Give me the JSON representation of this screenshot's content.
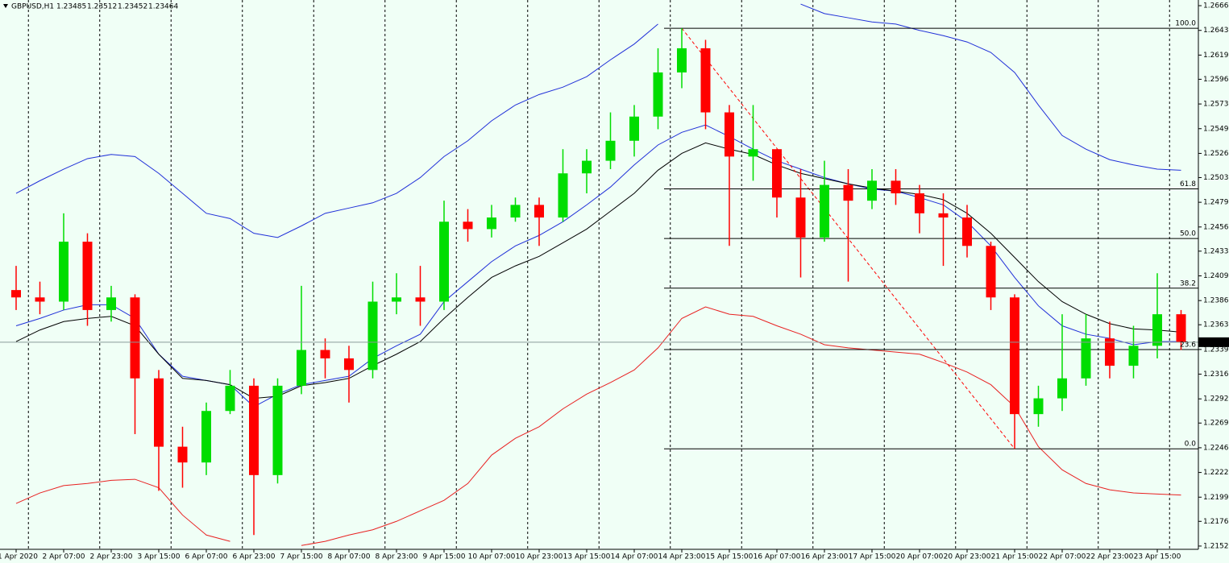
{
  "chart_data": {
    "type": "candlestick",
    "title": "GBPUSD,H1",
    "ohlc_header": [
      1.23485,
      1.23512,
      1.23452,
      1.23464
    ],
    "bid": 1.23464,
    "background": "#f0fff6",
    "up_color": "#00dd00",
    "down_color": "#ff0000",
    "categories": [
      "1 Apr 2020",
      null,
      "2 Apr 07:00",
      null,
      "2 Apr 23:00",
      null,
      "3 Apr 15:00",
      null,
      "6 Apr 07:00",
      null,
      "6 Apr 23:00",
      null,
      "7 Apr 15:00",
      null,
      "8 Apr 07:00",
      null,
      "8 Apr 23:00",
      null,
      "9 Apr 15:00",
      null,
      "10 Apr 07:00",
      null,
      "10 Apr 23:00",
      null,
      "13 Apr 15:00",
      null,
      "14 Apr 07:00",
      null,
      "14 Apr 23:00",
      null,
      "15 Apr 15:00",
      null,
      "16 Apr 07:00",
      null,
      "16 Apr 23:00",
      null,
      "17 Apr 15:00",
      null,
      "20 Apr 07:00",
      null,
      "20 Apr 23:00",
      null,
      "21 Apr 15:00",
      null,
      "22 Apr 07:00",
      null,
      "22 Apr 23:00",
      null,
      "23 Apr 15:00",
      null
    ],
    "candles": {
      "open": [
        1.2396,
        1.2389,
        1.2385,
        1.2442,
        1.2377,
        1.2389,
        1.2312,
        1.2247,
        1.2232,
        1.2281,
        1.2305,
        1.222,
        1.2305,
        1.2339,
        1.2331,
        1.232,
        1.2385,
        1.2389,
        1.2385,
        1.2461,
        1.2454,
        1.2465,
        1.2477,
        1.2465,
        1.2507,
        1.2519,
        1.2538,
        1.2561,
        1.2603,
        1.2626,
        1.2565,
        1.2523,
        1.253,
        1.2484,
        1.2446,
        1.2496,
        1.2481,
        1.25,
        1.2488,
        1.2469,
        1.2465,
        1.2438,
        1.2389,
        1.2278,
        1.2293,
        1.2312,
        1.235,
        1.2324,
        1.2343,
        1.2373
      ],
      "high": [
        1.2419,
        1.2404,
        1.2469,
        1.245,
        1.24,
        1.2392,
        1.232,
        1.2266,
        1.2289,
        1.232,
        1.2312,
        1.2312,
        1.24,
        1.235,
        1.2343,
        1.2404,
        1.2412,
        1.2419,
        1.2481,
        1.2473,
        1.2477,
        1.2484,
        1.2484,
        1.253,
        1.253,
        1.2565,
        1.2572,
        1.2626,
        1.2645,
        1.2634,
        1.2572,
        1.2572,
        1.253,
        1.2511,
        1.2519,
        1.2511,
        1.2511,
        1.2511,
        1.2496,
        1.2488,
        1.2477,
        1.2442,
        1.2392,
        1.2305,
        1.2373,
        1.2373,
        1.2366,
        1.2362,
        1.2412,
        1.2377
      ],
      "low": [
        1.2377,
        1.2373,
        1.2377,
        1.2362,
        1.2366,
        1.2259,
        1.2205,
        1.2208,
        1.222,
        1.2278,
        1.2163,
        1.2212,
        1.2297,
        1.2312,
        1.2289,
        1.2312,
        1.2373,
        1.2362,
        1.2377,
        1.2442,
        1.2446,
        1.2461,
        1.2438,
        1.2461,
        1.2488,
        1.2511,
        1.2523,
        1.2549,
        1.2588,
        1.2549,
        1.2438,
        1.25,
        1.2465,
        1.2408,
        1.2442,
        1.2404,
        1.2473,
        1.2477,
        1.245,
        1.2419,
        1.2427,
        1.2377,
        1.2245,
        1.2266,
        1.2281,
        1.2305,
        1.2312,
        1.2312,
        1.2331,
        1.2339
      ],
      "close": [
        1.2389,
        1.2385,
        1.2442,
        1.2377,
        1.2389,
        1.2312,
        1.2247,
        1.2232,
        1.2281,
        1.2305,
        1.222,
        1.2305,
        1.2339,
        1.2331,
        1.232,
        1.2385,
        1.2389,
        1.2385,
        1.2461,
        1.2454,
        1.2465,
        1.2477,
        1.2465,
        1.2507,
        1.2519,
        1.2538,
        1.2561,
        1.2603,
        1.2626,
        1.2565,
        1.2523,
        1.253,
        1.2484,
        1.2446,
        1.2496,
        1.2481,
        1.25,
        1.2488,
        1.2469,
        1.2465,
        1.2438,
        1.2389,
        1.2278,
        1.2293,
        1.2312,
        1.235,
        1.2324,
        1.2343,
        1.2373,
        1.23464
      ]
    },
    "lines": [
      {
        "color": "#1f2fd8",
        "values": [
          1.2488,
          1.25,
          1.2511,
          1.2521,
          1.2525,
          1.2523,
          1.2507,
          1.2488,
          1.2469,
          1.2464,
          1.245,
          1.2446,
          1.2457,
          1.2469,
          1.2474,
          1.2479,
          1.2488,
          1.2503,
          1.2523,
          1.2538,
          1.2557,
          1.2572,
          1.2582,
          1.2589,
          1.2599,
          1.2615,
          1.263,
          1.2649,
          null,
          null,
          null,
          null,
          null,
          1.2668,
          1.2659,
          1.2655,
          1.2651,
          1.2649,
          1.2643,
          1.2638,
          1.2632,
          1.2622,
          1.2603,
          1.2572,
          1.2543,
          1.253,
          1.252,
          1.2515,
          1.2511,
          1.251
        ]
      },
      {
        "color": "#e82020",
        "values": [
          1.2193,
          1.2203,
          1.221,
          1.2212,
          1.2215,
          1.2216,
          1.2208,
          1.2182,
          1.2163,
          1.2157,
          null,
          null,
          1.2153,
          1.2157,
          1.2163,
          1.2168,
          1.2176,
          1.2186,
          1.2196,
          1.2212,
          1.2239,
          1.2255,
          1.2266,
          1.2283,
          1.2297,
          1.2308,
          1.232,
          1.2341,
          1.2369,
          1.238,
          1.2373,
          1.2371,
          1.2362,
          1.2354,
          1.2344,
          1.2341,
          1.2339,
          1.2337,
          1.2335,
          1.2327,
          1.2318,
          1.2306,
          1.2285,
          1.2247,
          1.2225,
          1.2212,
          1.2206,
          1.2203,
          1.2202,
          1.2201
        ]
      },
      {
        "color": "#1f2fd8",
        "values": [
          1.2362,
          1.2369,
          1.2377,
          1.2382,
          1.2382,
          1.2369,
          1.2335,
          1.2314,
          1.231,
          1.2306,
          1.2285,
          1.2297,
          1.2306,
          1.231,
          1.2314,
          1.2331,
          1.2343,
          1.2354,
          1.2385,
          1.2404,
          1.2423,
          1.2438,
          1.2448,
          1.2461,
          1.2477,
          1.2494,
          1.2515,
          1.2534,
          1.2546,
          1.2553,
          1.2542,
          1.253,
          1.2519,
          1.2511,
          1.2503,
          1.2497,
          1.2492,
          1.249,
          1.2484,
          1.2477,
          1.2461,
          1.2438,
          1.2408,
          1.2381,
          1.2362,
          1.2354,
          1.235,
          1.2344,
          1.2347,
          1.2347
        ]
      },
      {
        "color": "#000000",
        "values": [
          1.2347,
          1.2358,
          1.2366,
          1.2369,
          1.2371,
          1.2362,
          1.2335,
          1.2312,
          1.231,
          1.2306,
          1.2293,
          1.2295,
          1.2305,
          1.2308,
          1.2312,
          1.2324,
          1.2335,
          1.2347,
          1.2369,
          1.2389,
          1.2408,
          1.2419,
          1.2428,
          1.2441,
          1.2454,
          1.2471,
          1.2488,
          1.251,
          1.2526,
          1.2536,
          1.253,
          1.2525,
          1.2515,
          1.2507,
          1.2502,
          1.2497,
          1.2493,
          1.249,
          1.2487,
          1.2482,
          1.2469,
          1.245,
          1.2427,
          1.2404,
          1.2385,
          1.2373,
          1.2364,
          1.2359,
          1.2358,
          1.2356
        ]
      }
    ],
    "fib": {
      "color": "#000000",
      "trend_color": "#ff0000",
      "high": 1.2645,
      "low": 1.2245,
      "levels": [
        {
          "value": 100,
          "label": "100.0"
        },
        {
          "value": 61.8,
          "label": "61.8"
        },
        {
          "value": 50,
          "label": "50.0"
        },
        {
          "value": 38.2,
          "label": "38.2"
        },
        {
          "value": 23.6,
          "label": "23.6"
        },
        {
          "value": 0,
          "label": "0.0"
        }
      ]
    },
    "ylim": [
      1.21494,
      1.26719
    ],
    "yticks": [
      1.26665,
      {
        "value": 1.2643,
        "label": "1.26430"
      },
      1.26195,
      1.25965,
      {
        "value": 1.2573,
        "label": "1.25730"
      },
      1.25495,
      1.2526,
      {
        "value": 1.2503,
        "label": "1.25030"
      },
      1.24795,
      {
        "value": 1.2456,
        "label": "1.24560"
      },
      {
        "value": 1.2433,
        "label": "1.24330"
      },
      1.24095,
      {
        "value": 1.2386,
        "label": "1.23860"
      },
      {
        "value": 1.2363,
        "label": "1.23630"
      },
      1.23395,
      {
        "value": 1.2316,
        "label": "1.23160"
      },
      1.22925,
      1.22695,
      {
        "value": 1.2246,
        "label": "1.22460"
      },
      1.22225,
      {
        "value": 1.2199,
        "label": "1.21990"
      },
      {
        "value": 1.2176,
        "label": "1.21760"
      },
      1.21525
    ]
  }
}
